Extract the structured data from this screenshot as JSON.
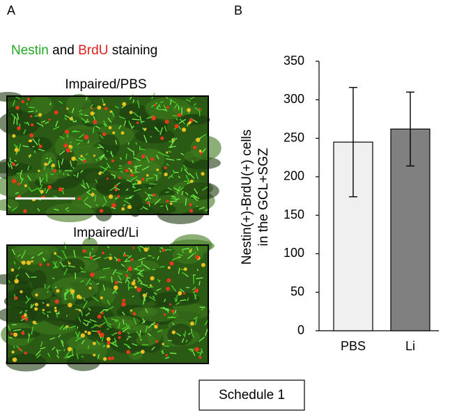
{
  "panel_a": {
    "letter": "A",
    "title_parts": [
      "Nestin",
      "and",
      "BrdU",
      "staining"
    ],
    "images": [
      "Impaired/PBS",
      "Impaired/Li"
    ]
  },
  "chart_data": {
    "type": "bar",
    "letter": "B",
    "y_label": [
      "Nestin(+)-BrdU(+) cells",
      "in the GCL+SGZ"
    ],
    "categories": [
      "PBS",
      "Li"
    ],
    "values": [
      245,
      262
    ],
    "errors": [
      71,
      48
    ],
    "colors": [
      "#f0f0f0",
      "#808080"
    ],
    "ylim": [
      0,
      350
    ],
    "yticks": [
      0,
      50,
      100,
      150,
      200,
      250,
      300,
      350
    ]
  },
  "footer": "Schedule 1"
}
